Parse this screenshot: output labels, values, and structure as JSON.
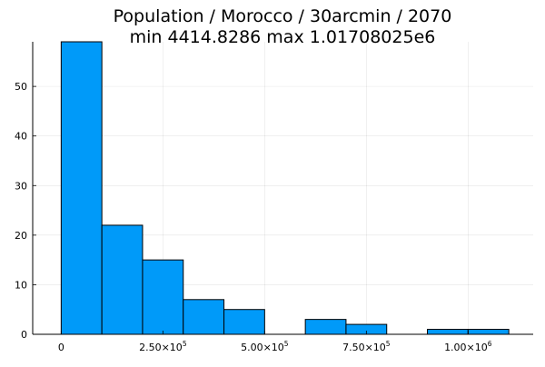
{
  "chart_data": {
    "type": "bar",
    "title_line1": "Population / Morocco / 30arcmin / 2070",
    "title_line2": "min 4414.8286  max 1.01708025e6",
    "bin_edges": [
      0,
      100000,
      200000,
      300000,
      400000,
      500000,
      600000,
      700000,
      800000,
      900000,
      1000000,
      1100000
    ],
    "values": [
      59,
      22,
      15,
      7,
      5,
      0,
      3,
      2,
      0,
      1,
      1
    ],
    "xlim": [
      -70000,
      1160000
    ],
    "ylim": [
      0,
      59
    ],
    "x_ticks": [
      {
        "value": 0,
        "mantissa": "0",
        "exponent": ""
      },
      {
        "value": 250000,
        "mantissa": "2.50×10",
        "exponent": "5"
      },
      {
        "value": 500000,
        "mantissa": "5.00×10",
        "exponent": "5"
      },
      {
        "value": 750000,
        "mantissa": "7.50×10",
        "exponent": "5"
      },
      {
        "value": 1000000,
        "mantissa": "1.00×10",
        "exponent": "6"
      }
    ],
    "y_ticks": [
      0,
      10,
      20,
      30,
      40,
      50
    ],
    "grid": true,
    "legend": "none",
    "bar_color": "#009af9",
    "bar_edge_color": "#000000"
  }
}
